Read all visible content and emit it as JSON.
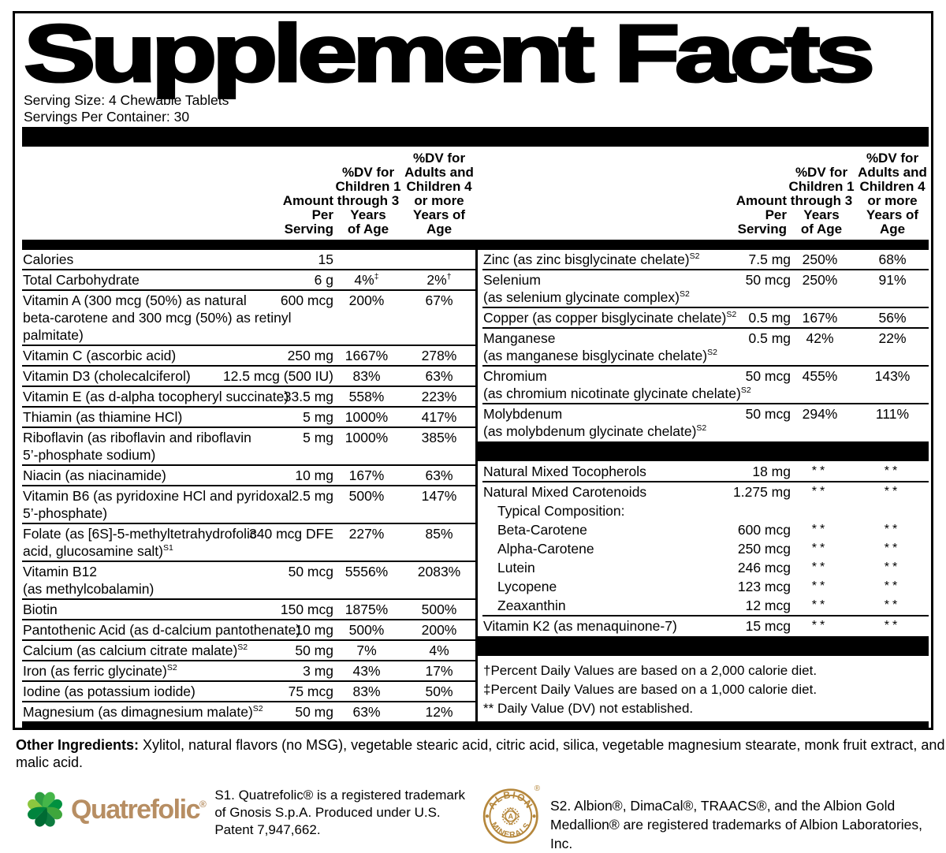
{
  "title": "Supplement Facts",
  "serving": {
    "size": "Serving Size: 4 Chewable Tablets",
    "per_container": "Servings Per Container: 30"
  },
  "column_headers": {
    "amount": "Amount\nPer Serving",
    "dv_children": "%DV for\nChildren 1\nthrough 3\nYears\nof Age",
    "dv_adults": "%DV for\nAdults and\nChildren 4\nor more\nYears of Age"
  },
  "left_rows": [
    {
      "name": "Calories",
      "amount": "15",
      "dv1": "",
      "dv2": ""
    },
    {
      "name": "Total Carbohydrate",
      "amount": "6 g",
      "dv1": "4%",
      "dv1_sup": "‡",
      "dv2": "2%",
      "dv2_sup": "†"
    },
    {
      "name": "Vitamin A (300 mcg (50%) as natural\nbeta-carotene and 300 mcg (50%) as retinyl\npalmitate)",
      "amount": "600 mcg",
      "dv1": "200%",
      "dv2": "67%"
    },
    {
      "name": "Vitamin C (ascorbic acid)",
      "amount": "250 mg",
      "dv1": "1667%",
      "dv2": "278%"
    },
    {
      "name": "Vitamin D3 (cholecalciferol)",
      "amount": "12.5 mcg (500 IU)",
      "dv1": "83%",
      "dv2": "63%"
    },
    {
      "name": "Vitamin E (as d-alpha tocopheryl succinate)",
      "amount": "33.5 mg",
      "dv1": "558%",
      "dv2": "223%"
    },
    {
      "name": "Thiamin (as thiamine HCl)",
      "amount": "5 mg",
      "dv1": "1000%",
      "dv2": "417%"
    },
    {
      "name": "Riboflavin (as riboflavin and riboflavin\n5’-phosphate sodium)",
      "amount": "5 mg",
      "dv1": "1000%",
      "dv2": "385%"
    },
    {
      "name": "Niacin (as niacinamide)",
      "amount": "10 mg",
      "dv1": "167%",
      "dv2": "63%"
    },
    {
      "name": "Vitamin B6 (as pyridoxine HCl and pyridoxal\n5’-phosphate)",
      "amount": "2.5 mg",
      "dv1": "500%",
      "dv2": "147%"
    },
    {
      "name": "Folate (as [6S]-5-methyltetrahydrofolic\nacid, glucosamine salt)",
      "sup": "S1",
      "amount": "340 mcg DFE",
      "dv1": "227%",
      "dv2": "85%"
    },
    {
      "name": "Vitamin B12\n(as methylcobalamin)",
      "amount": "50 mcg",
      "dv1": "5556%",
      "dv2": "2083%"
    },
    {
      "name": "Biotin",
      "amount": "150 mcg",
      "dv1": "1875%",
      "dv2": "500%"
    },
    {
      "name": "Pantothenic Acid (as d-calcium pantothenate)",
      "amount": "10 mg",
      "dv1": "500%",
      "dv2": "200%"
    },
    {
      "name": "Calcium (as calcium citrate malate)",
      "sup": "S2",
      "amount": "50 mg",
      "dv1": "7%",
      "dv2": "4%"
    },
    {
      "name": "Iron (as ferric glycinate)",
      "sup": "S2",
      "amount": "3 mg",
      "dv1": "43%",
      "dv2": "17%"
    },
    {
      "name": "Iodine (as potassium iodide)",
      "amount": "75 mcg",
      "dv1": "83%",
      "dv2": "50%"
    },
    {
      "name": "Magnesium (as dimagnesium malate)",
      "sup": "S2",
      "amount": "50 mg",
      "dv1": "63%",
      "dv2": "12%",
      "nosep": true
    }
  ],
  "right_rows": [
    {
      "name": "Zinc (as zinc bisglycinate chelate)",
      "sup": "S2",
      "amount": "7.5 mg",
      "dv1": "250%",
      "dv2": "68%"
    },
    {
      "name": "Selenium\n(as selenium glycinate complex)",
      "sup": "S2",
      "amount": "50 mcg",
      "dv1": "250%",
      "dv2": "91%"
    },
    {
      "name": "Copper (as copper bisglycinate chelate)",
      "sup": "S2",
      "amount": "0.5 mg",
      "dv1": "167%",
      "dv2": "56%"
    },
    {
      "name": "Manganese\n(as manganese bisglycinate chelate)",
      "sup": "S2",
      "amount": "0.5 mg",
      "dv1": "42%",
      "dv2": "22%"
    },
    {
      "name": "Chromium\n(as chromium nicotinate glycinate chelate)",
      "sup": "S2",
      "amount": "50 mcg",
      "dv1": "455%",
      "dv2": "143%"
    },
    {
      "name": "Molybdenum\n(as molybdenum glycinate chelate)",
      "sup": "S2",
      "amount": "50 mcg",
      "dv1": "294%",
      "dv2": "111%",
      "nosep": true
    },
    {
      "type": "bar"
    },
    {
      "name": "Natural Mixed Tocopherols",
      "amount": "18 mg",
      "dv1": "**",
      "dv2": "**"
    },
    {
      "name": "Natural Mixed Carotenoids",
      "amount": "1.275 mg",
      "dv1": "**",
      "dv2": "**",
      "nosep": true
    },
    {
      "name": "Typical Composition:",
      "amount": "",
      "dv1": "",
      "dv2": "",
      "indent": true,
      "nosep": true
    },
    {
      "name": "Beta-Carotene",
      "amount": "600 mcg",
      "dv1": "**",
      "dv2": "**",
      "indent": true,
      "nosep": true
    },
    {
      "name": "Alpha-Carotene",
      "amount": "250 mcg",
      "dv1": "**",
      "dv2": "**",
      "indent": true,
      "nosep": true
    },
    {
      "name": "Lutein",
      "amount": "246 mcg",
      "dv1": "**",
      "dv2": "**",
      "indent": true,
      "nosep": true
    },
    {
      "name": "Lycopene",
      "amount": "123 mcg",
      "dv1": "**",
      "dv2": "**",
      "indent": true,
      "nosep": true
    },
    {
      "name": "Zeaxanthin",
      "amount": "12 mcg",
      "dv1": "**",
      "dv2": "**",
      "indent": true
    },
    {
      "name": "Vitamin K2 (as menaquinone-7)",
      "amount": "15 mcg",
      "dv1": "**",
      "dv2": "**",
      "nosep": true
    },
    {
      "type": "bar"
    },
    {
      "type": "footnotes",
      "lines": [
        "†Percent Daily Values are based on a 2,000 calorie diet.",
        "‡Percent Daily Values are based on a 1,000 calorie diet.",
        "** Daily Value (DV) not established."
      ]
    }
  ],
  "other_ingredients": {
    "label": "Other Ingredients:",
    "text": " Xylitol, natural flavors (no MSG), vegetable stearic acid, citric acid, silica, vegetable magnesium stearate, monk fruit extract, and malic acid."
  },
  "quatrefolic": {
    "wordmark": "Quatrefolic",
    "registered": "®",
    "note": "S1. Quatrefolic® is a registered trademark\nof Gnosis S.p.A. Produced under U.S.\nPatent 7,947,662.",
    "wordmark_color": "#B78E63",
    "leaf_colors": [
      "#8DC63F",
      "#2E9E41",
      "#45B649",
      "#00913F",
      "#3FA63C",
      "#0E7C3F",
      "#006B33",
      "#00843D"
    ]
  },
  "albion": {
    "arc_top": "ALBION",
    "arc_bottom": "MINERALS",
    "center_letter": "A",
    "registered": "®",
    "color": "#B5873C",
    "note": "S2. Albion®, DimaCal®, TRAACS®, and the Albion Gold\nMedallion® are registered trademarks of Albion Laboratories, Inc."
  }
}
